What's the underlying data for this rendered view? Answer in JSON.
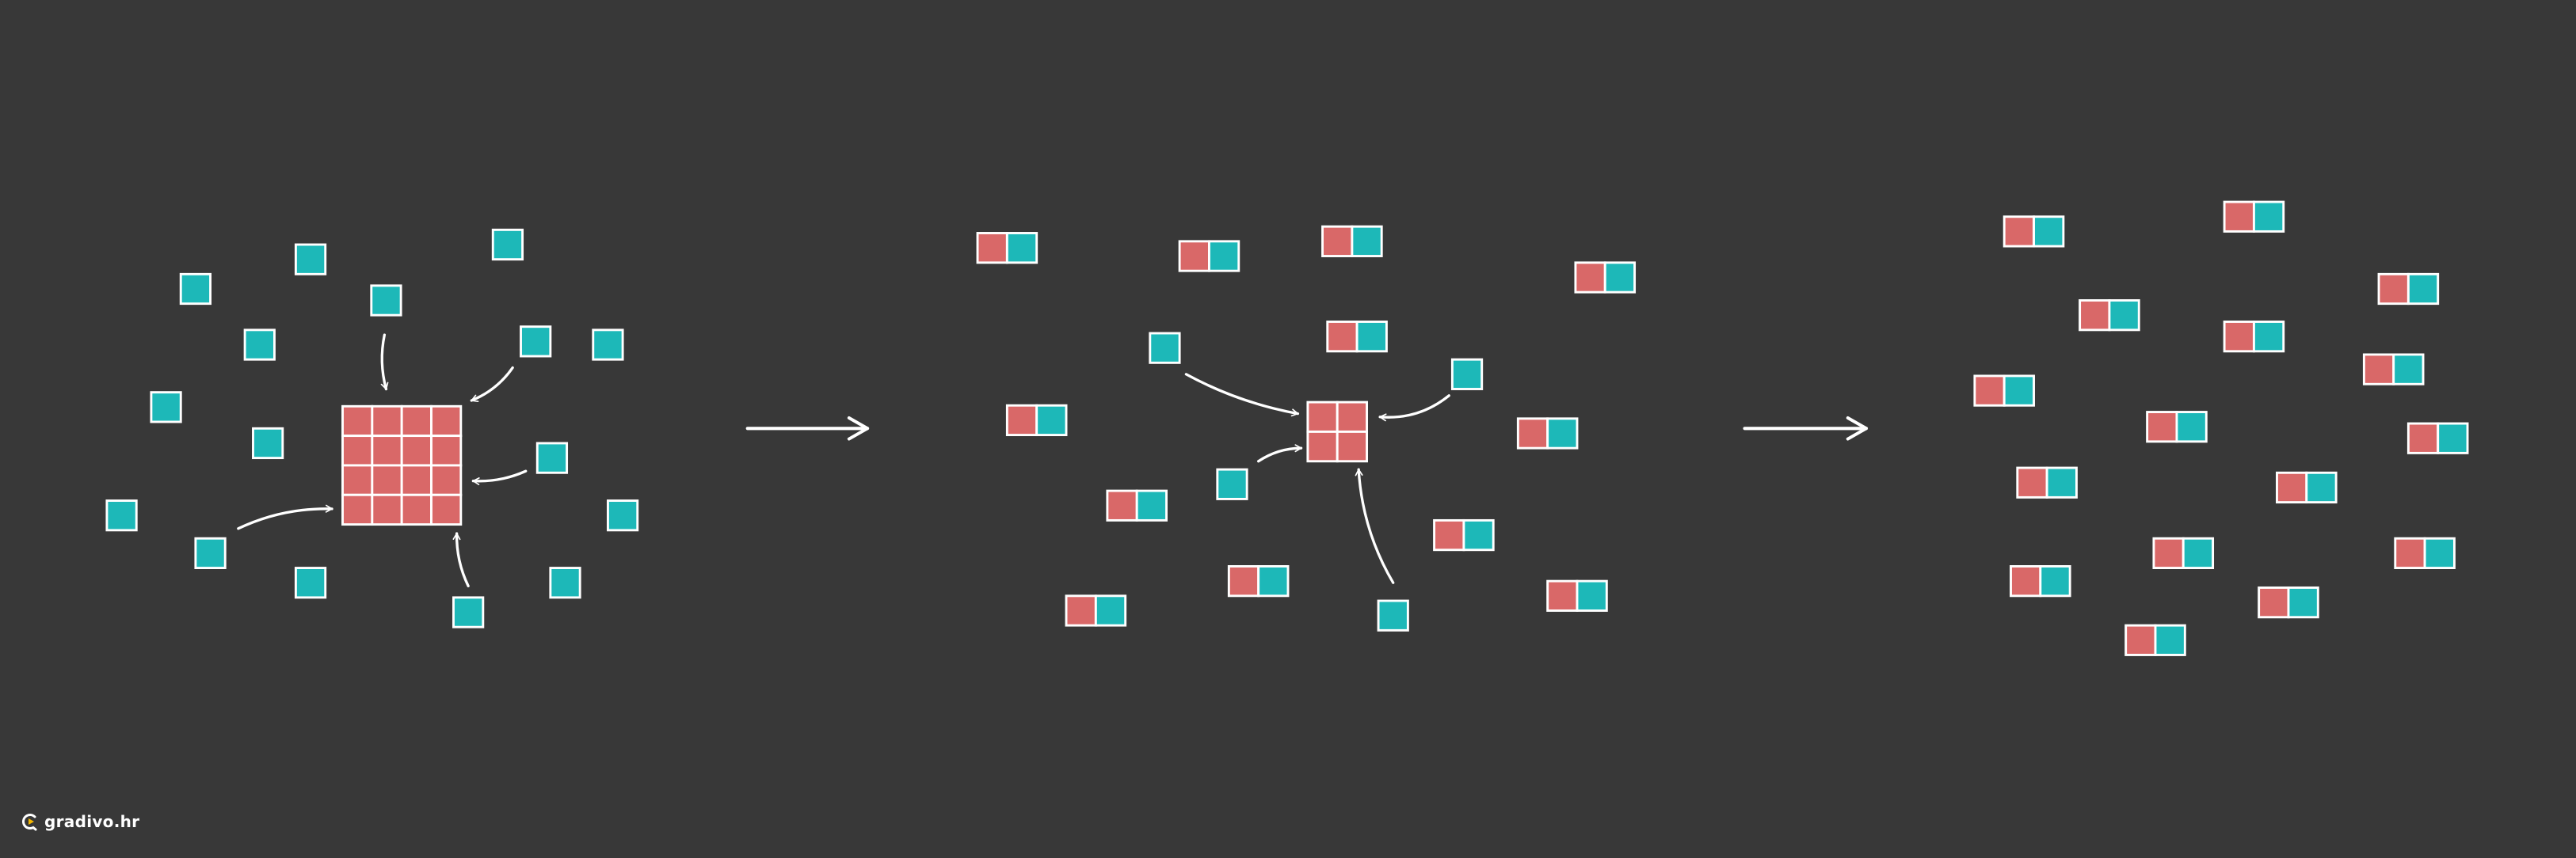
{
  "colors": {
    "background": "#383838",
    "red": "#d96868",
    "teal": "#1db8b8",
    "stroke": "#ffffff",
    "logo_accent": "#f5b800"
  },
  "logo": {
    "text": "gradivo.hr",
    "icon": "play-g-logo-icon"
  }
}
